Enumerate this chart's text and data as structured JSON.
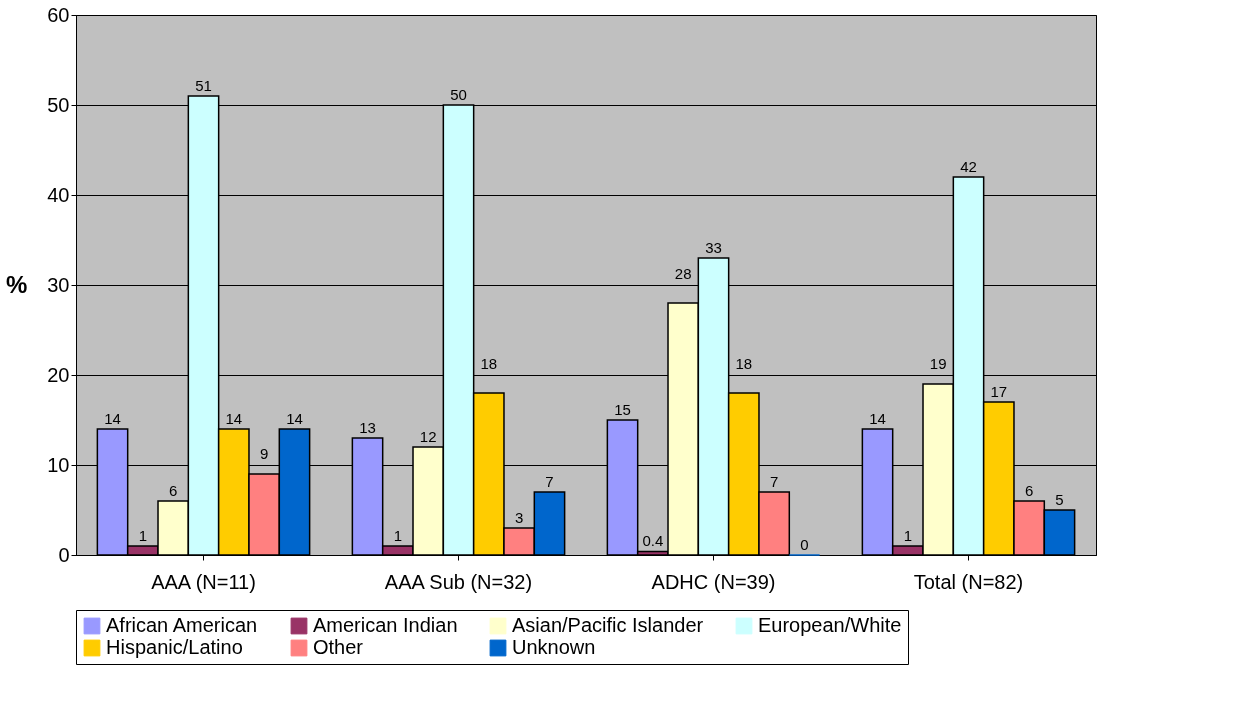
{
  "chart_data": {
    "type": "bar",
    "ylabel": "%",
    "categories": [
      "AAA (N=11)",
      "AAA Sub (N=32)",
      "ADHC (N=39)",
      "Total (N=82)"
    ],
    "series": [
      {
        "name": "African American",
        "color": "#9999ff",
        "values": [
          14,
          13,
          15,
          14
        ]
      },
      {
        "name": "American Indian",
        "color": "#993366",
        "values": [
          1,
          1,
          0.4,
          1
        ]
      },
      {
        "name": "Asian/Pacific Islander",
        "color": "#ffffcc",
        "values": [
          6,
          12,
          28,
          19
        ]
      },
      {
        "name": "European/White",
        "color": "#ccffff",
        "values": [
          51,
          50,
          33,
          42
        ]
      },
      {
        "name": "Hispanic/Latino",
        "color": "#ffcc00",
        "values": [
          14,
          18,
          18,
          17
        ]
      },
      {
        "name": "Other",
        "color": "#ff8080",
        "values": [
          9,
          3,
          7,
          6
        ]
      },
      {
        "name": "Unknown",
        "color": "#0066cc",
        "values": [
          14,
          7,
          0,
          5
        ]
      }
    ],
    "ylim": [
      0,
      60
    ],
    "yticks": [
      0,
      10,
      20,
      30,
      40,
      50,
      60
    ],
    "grid": "y",
    "legend": "bottom",
    "data_labels": true
  }
}
